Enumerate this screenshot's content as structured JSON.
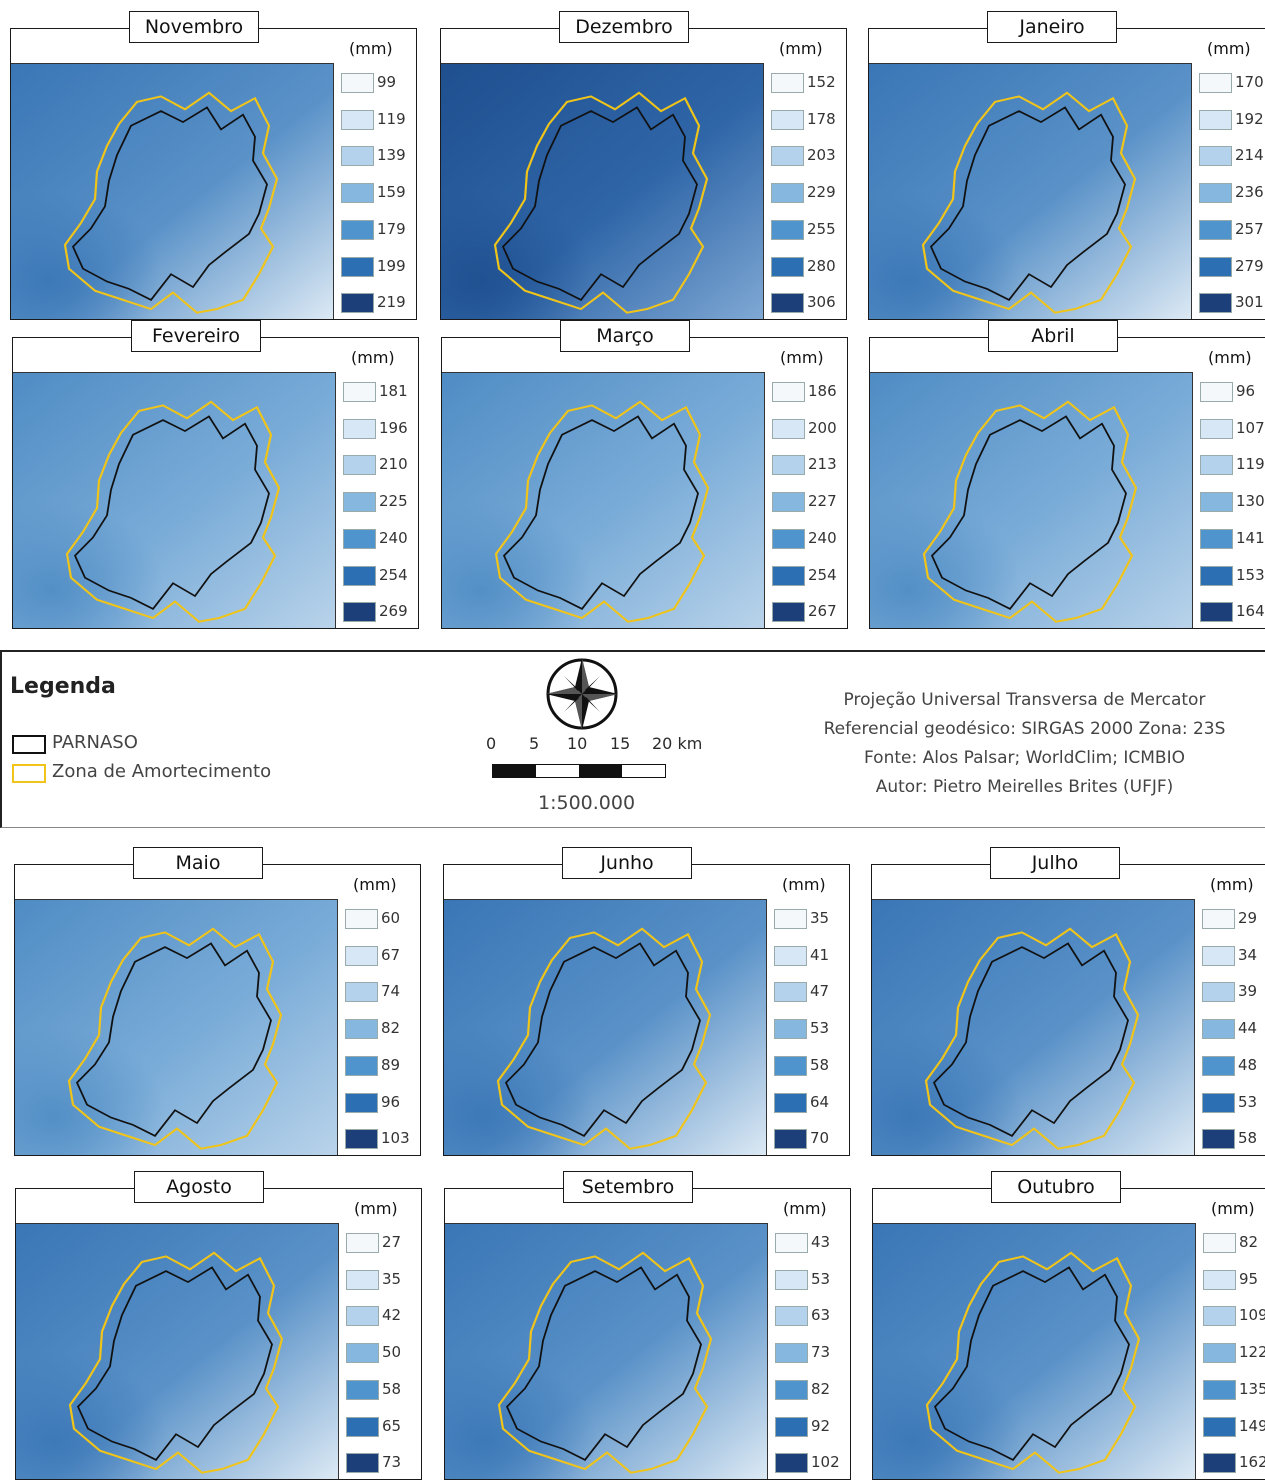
{
  "unit": "(mm)",
  "legend": {
    "title": "Legenda",
    "items": [
      {
        "label": "PARNASO",
        "color": "#111111"
      },
      {
        "label": "Zona de Amortecimento",
        "color": "#f0c419"
      }
    ]
  },
  "scalebar": {
    "ticks": [
      "0",
      "5",
      "10",
      "15",
      "20 km"
    ],
    "scale": "1:500.000"
  },
  "credits": [
    "Projeção Universal Transversa de Mercator",
    "Referencial geodésico: SIRGAS 2000 Zona: 23S",
    "Fonte: Alos Palsar; WorldClim; ICMBIO",
    "Autor: Pietro Meirelles Brites (UFJF)"
  ],
  "class_colors": [
    "#f4f8fb",
    "#d7e7f5",
    "#b4d2ec",
    "#85b7df",
    "#4f94cd",
    "#2c6fb3",
    "#1c3f7a"
  ],
  "months": [
    {
      "name": "Novembro",
      "values": [
        "99",
        "119",
        "139",
        "159",
        "179",
        "199",
        "219"
      ],
      "tone": "mid"
    },
    {
      "name": "Dezembro",
      "values": [
        "152",
        "178",
        "203",
        "229",
        "255",
        "280",
        "306"
      ],
      "tone": "dark"
    },
    {
      "name": "Janeiro",
      "values": [
        "170",
        "192",
        "214",
        "236",
        "257",
        "279",
        "301"
      ],
      "tone": "mid"
    },
    {
      "name": "Fevereiro",
      "values": [
        "181",
        "196",
        "210",
        "225",
        "240",
        "254",
        "269"
      ],
      "tone": "light"
    },
    {
      "name": "Março",
      "values": [
        "186",
        "200",
        "213",
        "227",
        "240",
        "254",
        "267"
      ],
      "tone": "light"
    },
    {
      "name": "Abril",
      "values": [
        "96",
        "107",
        "119",
        "130",
        "141",
        "153",
        "164"
      ],
      "tone": "light"
    },
    {
      "name": "Maio",
      "values": [
        "60",
        "67",
        "74",
        "82",
        "89",
        "96",
        "103"
      ],
      "tone": "light"
    },
    {
      "name": "Junho",
      "values": [
        "35",
        "41",
        "47",
        "53",
        "58",
        "64",
        "70"
      ],
      "tone": "mid"
    },
    {
      "name": "Julho",
      "values": [
        "29",
        "34",
        "39",
        "44",
        "48",
        "53",
        "58"
      ],
      "tone": "mid"
    },
    {
      "name": "Agosto",
      "values": [
        "27",
        "35",
        "42",
        "50",
        "58",
        "65",
        "73"
      ],
      "tone": "mid"
    },
    {
      "name": "Setembro",
      "values": [
        "43",
        "53",
        "63",
        "73",
        "82",
        "92",
        "102"
      ],
      "tone": "mid"
    },
    {
      "name": "Outubro",
      "values": [
        "82",
        "95",
        "109",
        "122",
        "135",
        "149",
        "162"
      ],
      "tone": "mid"
    }
  ]
}
